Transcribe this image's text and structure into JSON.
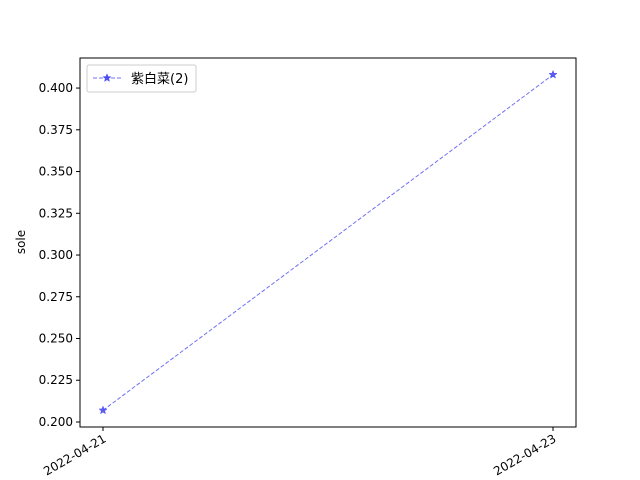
{
  "chart_data": {
    "type": "line",
    "title": "",
    "xlabel": "",
    "ylabel": "sole",
    "x": [
      "2022-04-21",
      "2022-04-23"
    ],
    "ylim": [
      0.197,
      0.418
    ],
    "yticks": [
      "0.200",
      "0.225",
      "0.250",
      "0.275",
      "0.300",
      "0.325",
      "0.350",
      "0.375",
      "0.400"
    ],
    "grid": false,
    "legend_position": "top-left",
    "series": [
      {
        "name": "紫白菜(2)",
        "values": [
          0.207,
          0.408
        ],
        "color": "#4d4df2",
        "line_style": "dashed",
        "marker": "star"
      }
    ]
  }
}
